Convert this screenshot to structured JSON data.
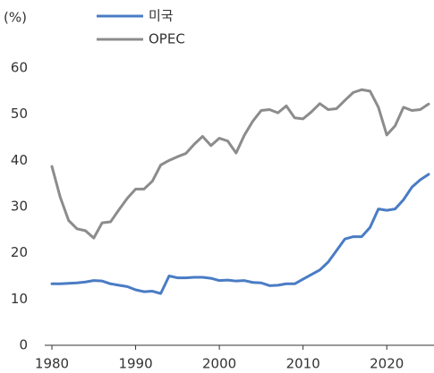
{
  "chart_data": {
    "type": "line",
    "y_unit_label": "(%)",
    "x": [
      1980,
      1981,
      1982,
      1983,
      1984,
      1985,
      1986,
      1987,
      1988,
      1989,
      1990,
      1991,
      1992,
      1993,
      1994,
      1995,
      1996,
      1997,
      1998,
      1999,
      2000,
      2001,
      2002,
      2003,
      2004,
      2005,
      2006,
      2007,
      2008,
      2009,
      2010,
      2011,
      2012,
      2013,
      2014,
      2015,
      2016,
      2017,
      2018,
      2019,
      2020,
      2021,
      2022,
      2023,
      2024,
      2025
    ],
    "series": [
      {
        "name": "미국",
        "color": "#4a7cc4",
        "values": [
          13.3,
          13.3,
          13.4,
          13.5,
          13.7,
          14.0,
          13.9,
          13.3,
          13.0,
          12.7,
          12.0,
          11.6,
          11.7,
          11.2,
          15.0,
          14.6,
          14.6,
          14.7,
          14.7,
          14.5,
          14.0,
          14.1,
          13.9,
          14.0,
          13.6,
          13.5,
          12.9,
          13.0,
          13.3,
          13.3,
          14.3,
          15.3,
          16.3,
          18.0,
          20.5,
          23.0,
          23.5,
          23.5,
          25.5,
          29.5,
          29.2,
          29.5,
          31.5,
          34.2,
          35.8,
          37.0
        ]
      },
      {
        "name": "OPEC",
        "color": "#8c8c8c",
        "values": [
          38.7,
          32.0,
          27.0,
          25.2,
          24.8,
          23.2,
          26.5,
          26.7,
          29.3,
          31.8,
          33.8,
          33.8,
          35.5,
          39.0,
          40.0,
          40.8,
          41.5,
          43.5,
          45.2,
          43.2,
          44.8,
          44.2,
          41.6,
          45.5,
          48.5,
          50.8,
          51.0,
          50.3,
          51.8,
          49.2,
          49.0,
          50.5,
          52.3,
          51.0,
          51.2,
          53.0,
          54.7,
          55.3,
          55.0,
          51.5,
          45.5,
          47.5,
          51.5,
          50.8,
          51.0,
          52.2
        ]
      }
    ],
    "xlim": [
      1980,
      2025
    ],
    "xticks": [
      1980,
      1990,
      2000,
      2010,
      2020
    ],
    "ylim": [
      0,
      60
    ],
    "yticks": [
      0,
      10,
      20,
      30,
      40,
      50,
      60
    ]
  }
}
